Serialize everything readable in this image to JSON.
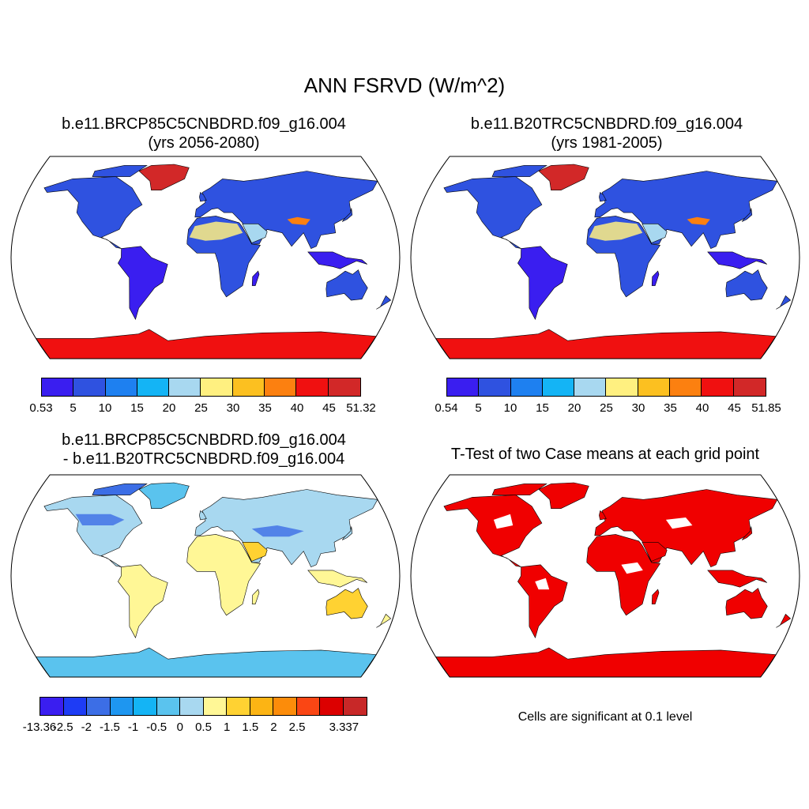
{
  "title": "ANN FSRVD (W/m^2)",
  "panels": [
    {
      "title_line1": "b.e11.BRCP85C5CNBDRD.f09_g16.004",
      "title_line2": "(yrs 2056-2080)",
      "palette": "absolute",
      "colorbar": {
        "colors": [
          "#3a1ef0",
          "#2f52e0",
          "#1e80f0",
          "#14b4f5",
          "#a8d8f0",
          "#fff080",
          "#fcc020",
          "#fc8010",
          "#f01010",
          "#d22828"
        ],
        "labels": [
          "0.53",
          "5",
          "10",
          "15",
          "20",
          "25",
          "30",
          "35",
          "40",
          "45",
          "51.32"
        ]
      }
    },
    {
      "title_line1": "b.e11.B20TRC5CNBDRD.f09_g16.004",
      "title_line2": "(yrs 1981-2005)",
      "palette": "absolute",
      "colorbar": {
        "colors": [
          "#3a1ef0",
          "#2f52e0",
          "#1e80f0",
          "#14b4f5",
          "#a8d8f0",
          "#fff080",
          "#fcc020",
          "#fc8010",
          "#f01010",
          "#d22828"
        ],
        "labels": [
          "0.54",
          "5",
          "10",
          "15",
          "20",
          "25",
          "30",
          "35",
          "40",
          "45",
          "51.85"
        ]
      }
    },
    {
      "title_line1": "b.e11.BRCP85C5CNBDRD.f09_g16.004",
      "title_line2": "- b.e11.B20TRC5CNBDRD.f09_g16.004",
      "palette": "difference",
      "colorbar": {
        "colors": [
          "#3a1ef0",
          "#1e3cf5",
          "#3c6ee6",
          "#1e96f0",
          "#14b4f5",
          "#5ac3ee",
          "#a8d8f0",
          "#fff796",
          "#ffd232",
          "#fcb414",
          "#fc8c0a",
          "#fa4614",
          "#dc0000",
          "#c82828"
        ],
        "labels": [
          "-13.36",
          "-2.5",
          "-2",
          "-1.5",
          "-1",
          "-0.5",
          "0",
          "0.5",
          "1",
          "1.5",
          "2",
          "2.5",
          "",
          "3.337"
        ]
      }
    },
    {
      "title_line1": "T-Test of two Case means at each grid point",
      "title_line2": "",
      "palette": "significance",
      "note": "Cells are significant at 0.1 level"
    }
  ]
}
